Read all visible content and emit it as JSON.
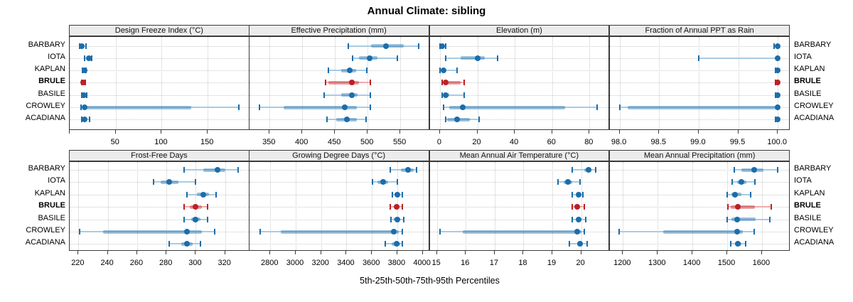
{
  "title": "Annual Climate: sibling",
  "x_axis_label": "5th-25th-50th-75th-95th Percentiles",
  "rows": [
    "BARBARY",
    "IOTA",
    "KAPLAN",
    "BRULE",
    "BASILE",
    "CROWLEY",
    "ACADIANA"
  ],
  "highlight_row": "BRULE",
  "colors": {
    "blue": "#1b6dab",
    "blue_light": "#a9cbe2",
    "red": "#bb2127",
    "red_light": "#eeacae",
    "strip_bg": "#ececec",
    "panel_border": "#3b3b3b",
    "grid": "#c9c9c9",
    "text": "#000000"
  },
  "percentile_keys": [
    "p5",
    "p25",
    "p50",
    "p75",
    "p95"
  ],
  "chart_data": [
    {
      "type": "dot-interval",
      "title": "Design Freeze Index (°C)",
      "row": 0,
      "col": 0,
      "xlim": [
        0,
        196
      ],
      "ticks": [
        {
          "v": 0,
          "label": ""
        },
        {
          "v": 50,
          "label": "50"
        },
        {
          "v": 100,
          "label": "100"
        },
        {
          "v": 150,
          "label": "150"
        }
      ],
      "series": [
        {
          "name": "BARBARY",
          "p": [
            11,
            12,
            13,
            15,
            18
          ]
        },
        {
          "name": "IOTA",
          "p": [
            16,
            19,
            21,
            22,
            24
          ]
        },
        {
          "name": "KAPLAN",
          "p": [
            14,
            15,
            16,
            17,
            18
          ]
        },
        {
          "name": "BRULE",
          "p": [
            13,
            14,
            15,
            16,
            17
          ]
        },
        {
          "name": "BASILE",
          "p": [
            13,
            14,
            15.5,
            17,
            18.5
          ]
        },
        {
          "name": "CROWLEY",
          "p": [
            12,
            14,
            16,
            132,
            184
          ]
        },
        {
          "name": "ACADIANA",
          "p": [
            13,
            15,
            16,
            18,
            22
          ]
        }
      ]
    },
    {
      "type": "dot-interval",
      "title": "Effective Precipitation (mm)",
      "row": 0,
      "col": 1,
      "xlim": [
        319,
        595
      ],
      "ticks": [
        {
          "v": 350,
          "label": "350"
        },
        {
          "v": 400,
          "label": "400"
        },
        {
          "v": 450,
          "label": "450"
        },
        {
          "v": 500,
          "label": "500"
        },
        {
          "v": 550,
          "label": "550"
        }
      ],
      "series": [
        {
          "name": "BARBARY",
          "p": [
            470,
            505,
            528,
            555,
            578
          ]
        },
        {
          "name": "IOTA",
          "p": [
            477,
            487,
            503,
            515,
            545
          ]
        },
        {
          "name": "KAPLAN",
          "p": [
            440,
            460,
            473,
            482,
            499
          ]
        },
        {
          "name": "BRULE",
          "p": [
            436,
            440,
            476,
            487,
            504
          ]
        },
        {
          "name": "BASILE",
          "p": [
            434,
            460,
            476,
            485,
            504
          ]
        },
        {
          "name": "CROWLEY",
          "p": [
            334,
            371,
            465,
            484,
            504
          ]
        },
        {
          "name": "ACADIANA",
          "p": [
            438,
            452,
            468,
            484,
            498
          ]
        }
      ]
    },
    {
      "type": "dot-interval",
      "title": "Elevation (m)",
      "row": 0,
      "col": 2,
      "xlim": [
        -5.5,
        91
      ],
      "ticks": [
        {
          "v": 0,
          "label": "0"
        },
        {
          "v": 20,
          "label": "20"
        },
        {
          "v": 40,
          "label": "40"
        },
        {
          "v": 60,
          "label": "60"
        },
        {
          "v": 80,
          "label": "80"
        }
      ],
      "series": [
        {
          "name": "BARBARY",
          "p": [
            0,
            0.5,
            1,
            2,
            3
          ]
        },
        {
          "name": "IOTA",
          "p": [
            3,
            11,
            20,
            24,
            31
          ]
        },
        {
          "name": "KAPLAN",
          "p": [
            0,
            1,
            2,
            3,
            9
          ]
        },
        {
          "name": "BRULE",
          "p": [
            1,
            2,
            3,
            11,
            13
          ]
        },
        {
          "name": "BASILE",
          "p": [
            1,
            2,
            3,
            5,
            13
          ]
        },
        {
          "name": "CROWLEY",
          "p": [
            2,
            5,
            12,
            67,
            84
          ]
        },
        {
          "name": "ACADIANA",
          "p": [
            3,
            4,
            9,
            16,
            21
          ]
        }
      ]
    },
    {
      "type": "dot-interval",
      "title": "Fraction of Annual PPT as Rain",
      "row": 0,
      "col": 3,
      "xlim": [
        97.88,
        100.16
      ],
      "ticks": [
        {
          "v": 98.0,
          "label": "98.0"
        },
        {
          "v": 98.5,
          "label": "98.5"
        },
        {
          "v": 99.0,
          "label": "99.0"
        },
        {
          "v": 99.5,
          "label": "99.5"
        },
        {
          "v": 100.0,
          "label": "100.0"
        }
      ],
      "series": [
        {
          "name": "BARBARY",
          "p": [
            99.95,
            100,
            100,
            100,
            100
          ]
        },
        {
          "name": "IOTA",
          "p": [
            99.0,
            100,
            100,
            100,
            100
          ]
        },
        {
          "name": "KAPLAN",
          "p": [
            99.97,
            100,
            100,
            100,
            100
          ]
        },
        {
          "name": "BRULE",
          "p": [
            99.97,
            100,
            100,
            100,
            100
          ]
        },
        {
          "name": "BASILE",
          "p": [
            99.97,
            100,
            100,
            100,
            100
          ]
        },
        {
          "name": "CROWLEY",
          "p": [
            98.0,
            98.1,
            100,
            100,
            100
          ]
        },
        {
          "name": "ACADIANA",
          "p": [
            99.97,
            100,
            100,
            100,
            100
          ]
        }
      ]
    },
    {
      "type": "dot-interval",
      "title": "Frost-Free Days",
      "row": 1,
      "col": 0,
      "xlim": [
        214,
        337
      ],
      "ticks": [
        {
          "v": 220,
          "label": "220"
        },
        {
          "v": 240,
          "label": "240"
        },
        {
          "v": 260,
          "label": "260"
        },
        {
          "v": 280,
          "label": "280"
        },
        {
          "v": 300,
          "label": "300"
        },
        {
          "v": 320,
          "label": "320"
        }
      ],
      "series": [
        {
          "name": "BARBARY",
          "p": [
            292,
            305,
            315,
            320,
            329
          ]
        },
        {
          "name": "IOTA",
          "p": [
            271,
            276,
            282,
            288,
            300
          ]
        },
        {
          "name": "KAPLAN",
          "p": [
            294,
            301,
            305,
            309,
            314
          ]
        },
        {
          "name": "BRULE",
          "p": [
            292,
            296,
            300,
            304,
            308
          ]
        },
        {
          "name": "BASILE",
          "p": [
            292,
            297,
            300,
            303,
            308
          ]
        },
        {
          "name": "CROWLEY",
          "p": [
            221,
            237,
            294,
            304,
            313
          ]
        },
        {
          "name": "ACADIANA",
          "p": [
            282,
            290,
            294,
            298,
            303
          ]
        }
      ]
    },
    {
      "type": "dot-interval",
      "title": "Growing Degree Days (°C)",
      "row": 1,
      "col": 1,
      "xlim": [
        2635,
        4055
      ],
      "ticks": [
        {
          "v": 2800,
          "label": "2800"
        },
        {
          "v": 3000,
          "label": "3000"
        },
        {
          "v": 3200,
          "label": "3200"
        },
        {
          "v": 3400,
          "label": "3400"
        },
        {
          "v": 3600,
          "label": "3600"
        },
        {
          "v": 3800,
          "label": "3800"
        },
        {
          "v": 4000,
          "label": "4000"
        }
      ],
      "series": [
        {
          "name": "BARBARY",
          "p": [
            3745,
            3830,
            3885,
            3930,
            3950
          ]
        },
        {
          "name": "IOTA",
          "p": [
            3605,
            3645,
            3690,
            3730,
            3800
          ]
        },
        {
          "name": "KAPLAN",
          "p": [
            3760,
            3780,
            3800,
            3815,
            3840
          ]
        },
        {
          "name": "BRULE",
          "p": [
            3745,
            3770,
            3795,
            3815,
            3840
          ]
        },
        {
          "name": "BASILE",
          "p": [
            3750,
            3775,
            3800,
            3820,
            3850
          ]
        },
        {
          "name": "CROWLEY",
          "p": [
            2720,
            2880,
            3770,
            3810,
            3840
          ]
        },
        {
          "name": "ACADIANA",
          "p": [
            3705,
            3755,
            3795,
            3820,
            3840
          ]
        }
      ]
    },
    {
      "type": "dot-interval",
      "title": "Mean Annual Air Temperature (°C)",
      "row": 1,
      "col": 2,
      "xlim": [
        14.75,
        21.0
      ],
      "ticks": [
        {
          "v": 15,
          "label": "15"
        },
        {
          "v": 16,
          "label": "16"
        },
        {
          "v": 17,
          "label": "17"
        },
        {
          "v": 18,
          "label": "18"
        },
        {
          "v": 19,
          "label": "19"
        },
        {
          "v": 20,
          "label": "20"
        }
      ],
      "series": [
        {
          "name": "BARBARY",
          "p": [
            19.7,
            20.1,
            20.25,
            20.35,
            20.5
          ]
        },
        {
          "name": "IOTA",
          "p": [
            19.2,
            19.4,
            19.55,
            19.7,
            19.95
          ]
        },
        {
          "name": "KAPLAN",
          "p": [
            19.7,
            19.85,
            19.9,
            19.95,
            20.05
          ]
        },
        {
          "name": "BRULE",
          "p": [
            19.7,
            19.8,
            19.85,
            19.95,
            20.1
          ]
        },
        {
          "name": "BASILE",
          "p": [
            19.7,
            19.85,
            19.9,
            20.0,
            20.15
          ]
        },
        {
          "name": "CROWLEY",
          "p": [
            15.1,
            15.9,
            19.85,
            20.0,
            20.1
          ]
        },
        {
          "name": "ACADIANA",
          "p": [
            19.6,
            19.85,
            19.95,
            20.05,
            20.2
          ]
        }
      ]
    },
    {
      "type": "dot-interval",
      "title": "Mean Annual Precipitation (mm)",
      "row": 1,
      "col": 3,
      "xlim": [
        1163,
        1682
      ],
      "ticks": [
        {
          "v": 1200,
          "label": "1200"
        },
        {
          "v": 1300,
          "label": "1300"
        },
        {
          "v": 1400,
          "label": "1400"
        },
        {
          "v": 1500,
          "label": "1500"
        },
        {
          "v": 1600,
          "label": "1600"
        }
      ],
      "series": [
        {
          "name": "BARBARY",
          "p": [
            1520,
            1540,
            1578,
            1605,
            1645
          ]
        },
        {
          "name": "IOTA",
          "p": [
            1515,
            1528,
            1540,
            1555,
            1580
          ]
        },
        {
          "name": "KAPLAN",
          "p": [
            1500,
            1512,
            1522,
            1540,
            1567
          ]
        },
        {
          "name": "BRULE",
          "p": [
            1503,
            1510,
            1531,
            1580,
            1627
          ]
        },
        {
          "name": "BASILE",
          "p": [
            1500,
            1512,
            1529,
            1582,
            1622
          ]
        },
        {
          "name": "CROWLEY",
          "p": [
            1190,
            1315,
            1528,
            1545,
            1577
          ]
        },
        {
          "name": "ACADIANA",
          "p": [
            1510,
            1522,
            1530,
            1540,
            1554
          ]
        }
      ]
    }
  ]
}
